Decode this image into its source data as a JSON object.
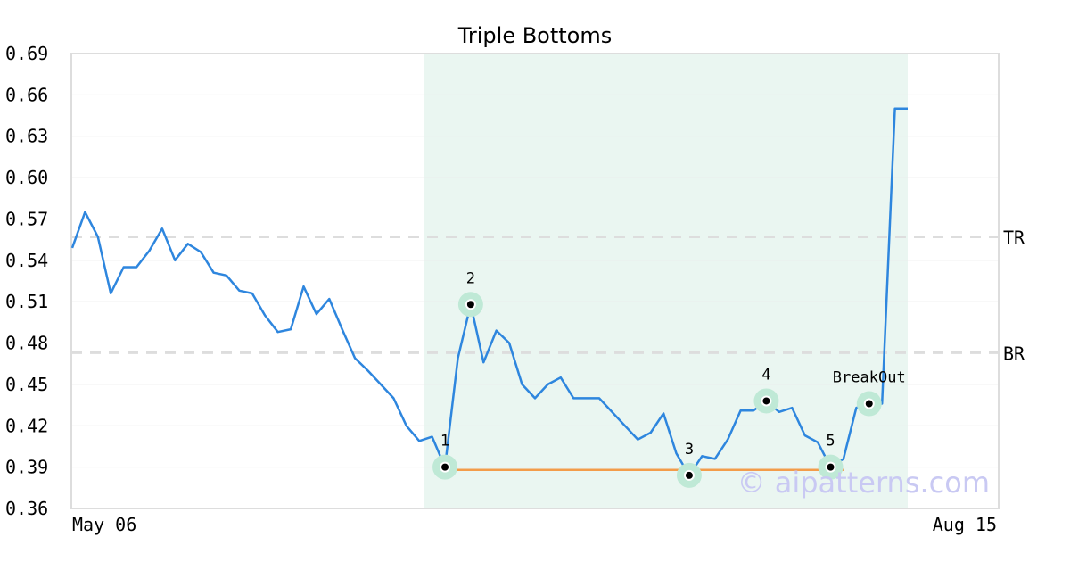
{
  "chart_data": {
    "type": "line",
    "title": "Triple Bottoms",
    "xlabel": "",
    "ylabel": "",
    "ylim": [
      0.36,
      0.69
    ],
    "yticks": [
      "0.36",
      "0.39",
      "0.42",
      "0.45",
      "0.48",
      "0.51",
      "0.54",
      "0.57",
      "0.60",
      "0.63",
      "0.66",
      "0.69"
    ],
    "xtick_labels": [
      "May 06",
      "Aug 15"
    ],
    "grid": true,
    "colors": {
      "line": "#2e86de",
      "support": "#f39c4a",
      "highlight": "#eaf6f1",
      "marker_halo": "#bfe9d6",
      "refline": "#dddddd"
    },
    "series": [
      {
        "values": [
          0.549,
          0.575,
          0.557,
          0.516,
          0.535,
          0.535,
          0.547,
          0.563,
          0.54,
          0.552,
          0.546,
          0.531,
          0.529,
          0.518,
          0.516,
          0.5,
          0.488,
          0.49,
          0.521,
          0.501,
          0.512,
          0.49,
          0.469,
          0.46,
          0.45,
          0.44,
          0.42,
          0.409,
          0.412,
          0.39,
          0.469,
          0.508,
          0.466,
          0.489,
          0.48,
          0.45,
          0.44,
          0.45,
          0.455,
          0.44,
          0.44,
          0.44,
          0.43,
          0.42,
          0.41,
          0.415,
          0.429,
          0.4,
          0.384,
          0.398,
          0.396,
          0.41,
          0.431,
          0.431,
          0.438,
          0.43,
          0.433,
          0.413,
          0.408,
          0.39,
          0.396,
          0.433,
          0.436,
          0.436,
          0.65,
          0.65
        ]
      }
    ],
    "highlight_range_index": [
      28,
      66
    ],
    "support_level": 0.388,
    "support_range_index": [
      29,
      60
    ],
    "reference_lines": [
      {
        "label": "TR",
        "value": 0.557
      },
      {
        "label": "BR",
        "value": 0.473
      }
    ],
    "points": [
      {
        "label": "1",
        "index": 29,
        "value": 0.39
      },
      {
        "label": "2",
        "index": 31,
        "value": 0.508
      },
      {
        "label": "3",
        "index": 48,
        "value": 0.384
      },
      {
        "label": "4",
        "index": 54,
        "value": 0.438
      },
      {
        "label": "5",
        "index": 59,
        "value": 0.39
      },
      {
        "label": "BreakOut",
        "index": 62,
        "value": 0.436
      }
    ],
    "watermark": "© aipatterns.com"
  }
}
